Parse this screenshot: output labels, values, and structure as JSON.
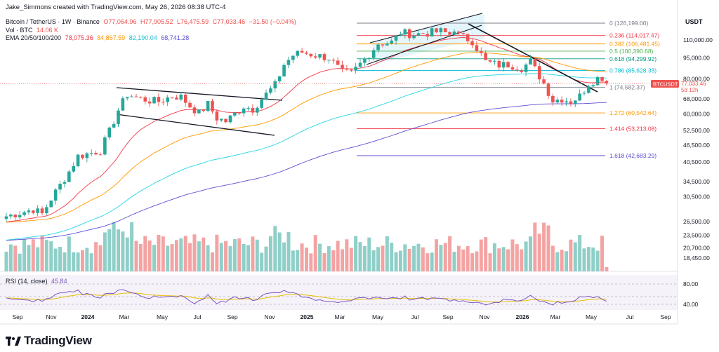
{
  "credit": "Jake_Simmons created with TradingView.com, May 26, 2026 08:38 UTC-4",
  "brand": "TradingView",
  "legend": {
    "symbol": "Bitcoin / TetherUS · 1W · Binance",
    "open": "O77,064.96",
    "high": "H77,905.52",
    "low": "L76,475.59",
    "close": "C77,033.46",
    "change": "−31.50 (−0.04%)",
    "vol_label": "Vol · BTC",
    "vol_value": "14.06 K",
    "ema_label": "EMA 20/50/100/200",
    "ema20": "78,075.36",
    "ema50": "84,867.59",
    "ema100": "82,190.04",
    "ema200": "68,741.28",
    "rsi_label": "RSI (14, close)",
    "rsi_value": "45.84"
  },
  "colors": {
    "up": "#26a69a",
    "down": "#ef5350",
    "vol_up": "#8fcfc8",
    "vol_down": "#f4a3a3",
    "ema20": "#f23645",
    "ema50": "#ff9800",
    "ema100": "#22d6e8",
    "ema200": "#5b4fd3",
    "rsi": "#7e57c2",
    "rsi_ma": "#e6c000"
  },
  "chart_data": {
    "type": "candlestick",
    "currency": "USDT",
    "price_ticks": [
      "110,000.00",
      "95,000.00",
      "80,000.00",
      "68,000.00",
      "60,000.00",
      "52,500.00",
      "46,500.00",
      "40,500.00",
      "34,500.00",
      "30,500.00",
      "26,500.00",
      "23,500.00",
      "20,700.00",
      "18,450.00"
    ],
    "rsi_ticks": [
      "80.00",
      "40.00"
    ],
    "x_ticks": [
      "Sep",
      "Nov",
      "2024",
      "Mar",
      "May",
      "Jul",
      "Sep",
      "Nov",
      "2025",
      "Mar",
      "May",
      "Jul",
      "Sep",
      "Nov",
      "2026",
      "Mar",
      "May",
      "Jul",
      "Sep"
    ],
    "last_price": {
      "label": "BTCUSDT",
      "price": "77,033.46",
      "countdown": "5d 12h"
    },
    "fib_levels": [
      {
        "ratio": "0",
        "price": "126,199.00",
        "value": 126199,
        "color": "#787b86"
      },
      {
        "ratio": "0.236",
        "price": "114,017.47",
        "value": 114017,
        "color": "#f23645"
      },
      {
        "ratio": "0.382",
        "price": "106,481.45",
        "value": 106481,
        "color": "#ff9800"
      },
      {
        "ratio": "0.5",
        "price": "100,390.68",
        "value": 100391,
        "color": "#4caf50"
      },
      {
        "ratio": "0.618",
        "price": "94,299.92",
        "value": 94300,
        "color": "#089981"
      },
      {
        "ratio": "0.786",
        "price": "85,628.33",
        "value": 85628,
        "color": "#00bcd4"
      },
      {
        "ratio": "1",
        "price": "74,582.37",
        "value": 74582,
        "color": "#787b86"
      },
      {
        "ratio": "1.272",
        "price": "60,542.64",
        "value": 60543,
        "color": "#ff9800"
      },
      {
        "ratio": "1.414",
        "price": "53,213.08",
        "value": 53213,
        "color": "#f23645"
      },
      {
        "ratio": "1.618",
        "price": "42,683.29",
        "value": 42683,
        "color": "#5b4fd3"
      }
    ],
    "price_anchors": [
      [
        0,
        26000
      ],
      [
        6,
        27500
      ],
      [
        8,
        26500
      ],
      [
        10,
        30000
      ],
      [
        14,
        37500
      ],
      [
        16,
        42500
      ],
      [
        19,
        43700
      ],
      [
        21,
        44500
      ],
      [
        23,
        52000
      ],
      [
        25,
        62000
      ],
      [
        27,
        70500
      ],
      [
        30,
        68000
      ],
      [
        32,
        67000
      ],
      [
        34,
        66500
      ],
      [
        37,
        69500
      ],
      [
        39,
        69000
      ],
      [
        41,
        64000
      ],
      [
        43,
        60500
      ],
      [
        45,
        65000
      ],
      [
        47,
        58000
      ],
      [
        49,
        56500
      ],
      [
        51,
        60000
      ],
      [
        53,
        64000
      ],
      [
        55,
        62500
      ],
      [
        57,
        68000
      ],
      [
        60,
        76000
      ],
      [
        62,
        90000
      ],
      [
        64,
        97000
      ],
      [
        66,
        99500
      ],
      [
        69,
        97000
      ],
      [
        72,
        95000
      ],
      [
        75,
        84000
      ],
      [
        77,
        83500
      ],
      [
        80,
        94000
      ],
      [
        83,
        107000
      ],
      [
        86,
        108000
      ],
      [
        88,
        117000
      ],
      [
        91,
        115000
      ],
      [
        94,
        116500
      ],
      [
        97,
        118000
      ],
      [
        99,
        115000
      ],
      [
        100,
        121000
      ],
      [
        101,
        114000
      ],
      [
        104,
        109000
      ],
      [
        107,
        92000
      ],
      [
        110,
        89500
      ],
      [
        112,
        90000
      ],
      [
        115,
        87500
      ],
      [
        117,
        92000
      ],
      [
        120,
        77000
      ],
      [
        122,
        67000
      ],
      [
        124,
        68000
      ],
      [
        126,
        66500
      ],
      [
        128,
        69500
      ],
      [
        130,
        77000
      ],
      [
        132,
        80500
      ],
      [
        133,
        81000
      ],
      [
        134,
        77033
      ]
    ]
  }
}
